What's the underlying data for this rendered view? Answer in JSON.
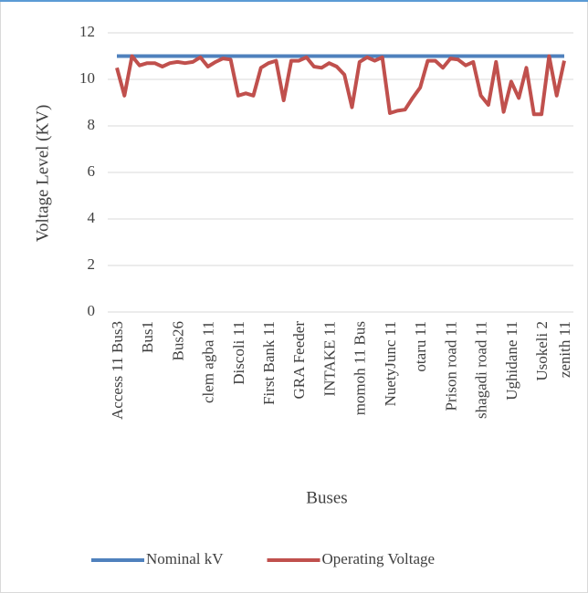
{
  "chart_data": {
    "type": "line",
    "x_label": "Buses",
    "y_label": "Voltage Level (KV)",
    "categories": [
      "Access 11 Bus3",
      null,
      null,
      null,
      "Bus1",
      null,
      null,
      null,
      "Bus26",
      null,
      null,
      null,
      "clem agba 11",
      null,
      null,
      null,
      "Discoli 11",
      null,
      null,
      null,
      "First Bank 11",
      null,
      null,
      null,
      "GRA Feeder",
      null,
      null,
      null,
      "INTAKE 11",
      null,
      null,
      null,
      "momoh 11 Bus",
      null,
      null,
      null,
      "NuetyJunc 11",
      null,
      null,
      null,
      "otaru 11",
      null,
      null,
      null,
      "Prison road 11",
      null,
      null,
      null,
      "shagadi road 11",
      null,
      null,
      null,
      "Ughidane 11",
      null,
      null,
      null,
      "Usokeli 2",
      null,
      null,
      "zenith 11"
    ],
    "series": [
      {
        "name": "Nominal kV",
        "color": "#4f81bd",
        "values": [
          11,
          11,
          11,
          11,
          11,
          11,
          11,
          11,
          11,
          11,
          11,
          11,
          11,
          11,
          11,
          11,
          11,
          11,
          11,
          11,
          11,
          11,
          11,
          11,
          11,
          11,
          11,
          11,
          11,
          11,
          11,
          11,
          11,
          11,
          11,
          11,
          11,
          11,
          11,
          11,
          11,
          11,
          11,
          11,
          11,
          11,
          11,
          11,
          11,
          11,
          11,
          11,
          11,
          11,
          11,
          11,
          11,
          11,
          11,
          11
        ]
      },
      {
        "name": "Operating Voltage",
        "color": "#c0504d",
        "values": [
          10.5,
          9.3,
          11.0,
          10.6,
          10.7,
          10.7,
          10.55,
          10.7,
          10.75,
          10.7,
          10.75,
          10.95,
          10.55,
          10.75,
          10.9,
          10.85,
          9.3,
          9.4,
          9.3,
          10.5,
          10.7,
          10.8,
          9.1,
          10.8,
          10.8,
          10.95,
          10.55,
          10.5,
          10.7,
          10.55,
          10.2,
          8.8,
          10.75,
          10.95,
          10.8,
          10.95,
          8.55,
          8.65,
          8.7,
          9.2,
          9.65,
          10.8,
          10.8,
          10.5,
          10.9,
          10.85,
          10.6,
          10.75,
          9.3,
          8.9,
          10.75,
          8.6,
          9.9,
          9.2,
          10.5,
          8.5,
          8.5,
          11.0,
          9.3,
          10.8
        ]
      }
    ],
    "ylim": [
      0,
      12
    ],
    "yticks": [
      0,
      2,
      4,
      6,
      8,
      10,
      12
    ],
    "grid": true,
    "legend": "bottom"
  }
}
